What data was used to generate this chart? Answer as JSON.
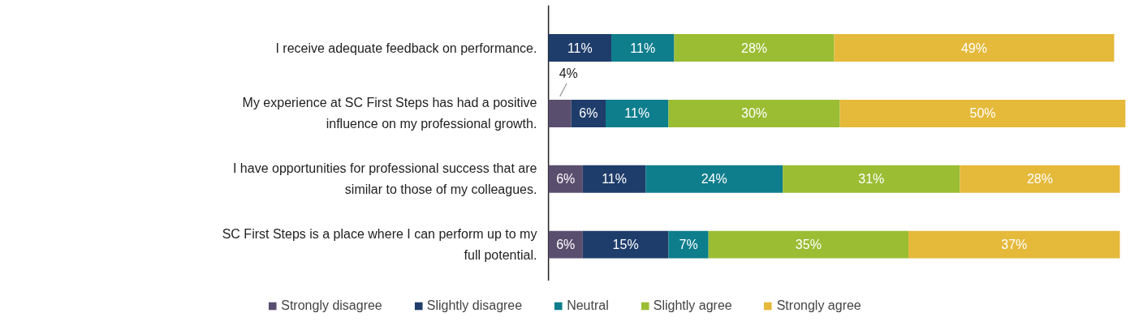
{
  "chart_data": {
    "type": "bar",
    "orientation": "horizontal",
    "stacked": true,
    "legend": "bottom",
    "grid": false,
    "tick_labels": "y",
    "xlim": [
      0,
      101
    ],
    "categories": [
      "I receive adequate feedback on performance.",
      "My experience at SC First Steps has had a positive influence on my professional growth.",
      "I have opportunities for professional success that are similar to those of my colleagues.",
      "SC First Steps is a place where I can perform up to my full potential."
    ],
    "series": [
      {
        "name": "Strongly disagree",
        "color": "#5a4e6e",
        "values": [
          null,
          4,
          6,
          6
        ],
        "value_labels": [
          null,
          "4%",
          "6%",
          "6%"
        ]
      },
      {
        "name": "Slightly disagree",
        "color": "#1f3d6b",
        "values": [
          11,
          6,
          11,
          15
        ],
        "value_labels": [
          "11%",
          "6%",
          "11%",
          "15%"
        ]
      },
      {
        "name": "Neutral",
        "color": "#0e7d8c",
        "values": [
          11,
          11,
          24,
          7
        ],
        "value_labels": [
          "11%",
          "11%",
          "24%",
          "7%"
        ]
      },
      {
        "name": "Slightly agree",
        "color": "#9bbd33",
        "values": [
          28,
          30,
          31,
          35
        ],
        "value_labels": [
          "28%",
          "30%",
          "31%",
          "35%"
        ]
      },
      {
        "name": "Strongly agree",
        "color": "#e5b93a",
        "values": [
          49,
          50,
          28,
          37
        ],
        "value_labels": [
          "49%",
          "50%",
          "28%",
          "37%"
        ]
      }
    ]
  }
}
